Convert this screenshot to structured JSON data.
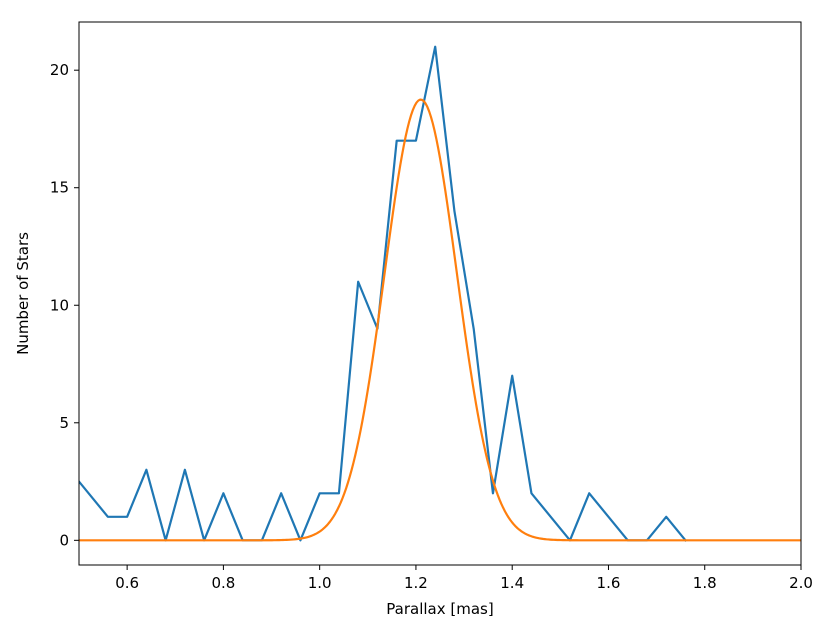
{
  "chart_data": {
    "type": "line",
    "title": "",
    "xlabel": "Parallax [mas]",
    "ylabel": "Number of Stars",
    "xlim": [
      0.5,
      2.0
    ],
    "ylim": [
      -1.05,
      22.05
    ],
    "xticks": [
      "0.6",
      "0.8",
      "1.0",
      "1.2",
      "1.4",
      "1.6",
      "1.8",
      "2.0"
    ],
    "yticks": [
      "0",
      "5",
      "10",
      "15",
      "20"
    ],
    "grid": false,
    "legend": "none",
    "series": [
      {
        "color": "#1f77b4",
        "x": [
          0.48,
          0.56,
          0.6,
          0.64,
          0.68,
          0.72,
          0.76,
          0.8,
          0.84,
          0.88,
          0.92,
          0.96,
          1.0,
          1.04,
          1.08,
          1.12,
          1.16,
          1.2,
          1.24,
          1.28,
          1.32,
          1.36,
          1.4,
          1.44,
          1.48,
          1.52,
          1.56,
          1.6,
          1.64,
          1.68,
          1.72,
          1.76
        ],
        "y": [
          3,
          1,
          1,
          3,
          0,
          3,
          0,
          2,
          0,
          0,
          2,
          0,
          2,
          2,
          11,
          9,
          17,
          17,
          21,
          14,
          9,
          2,
          7,
          2,
          1,
          0,
          2,
          1,
          0,
          0,
          1,
          0
        ]
      },
      {
        "color": "#ff7f0e",
        "model": "gaussian",
        "amplitude": 18.75,
        "mean": 1.21,
        "sigma": 0.075,
        "x_range": [
          0.5,
          2.0
        ]
      }
    ]
  }
}
